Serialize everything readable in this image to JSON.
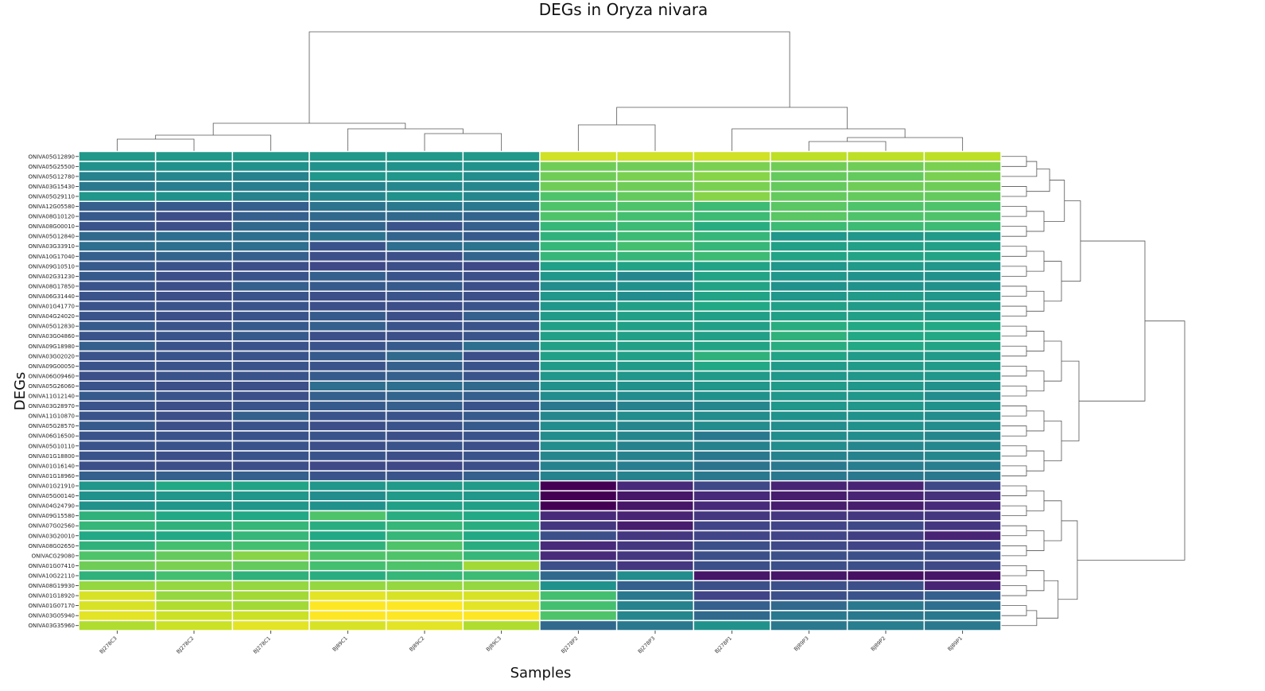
{
  "chart_data": {
    "type": "heatmap",
    "title": "DEGs in Oryza nivara",
    "xlabel": "Samples",
    "ylabel": "DEGs",
    "colormap": "viridis",
    "grid_color": "#ffffff",
    "columns": [
      "BJ278C3",
      "BJ278C2",
      "BJ278C1",
      "BJ89C1",
      "BJ89C2",
      "BJ89C3",
      "BJ278P2",
      "BJ278P3",
      "BJ278P1",
      "BJ89P3",
      "BJ89P2",
      "BJ89P1"
    ],
    "rows": [
      "ONIVA05G12890",
      "ONIVA05G25500",
      "ONIVA05G12780",
      "ONIVA03G15430",
      "ONIVA05G29110",
      "ONIVA12G05580",
      "ONIVA08G10120",
      "ONIVA08G00010",
      "ONIVA05G12840",
      "ONIVA03G33910",
      "ONIVA10G17040",
      "ONIVA09G10510",
      "ONIVA02G31230",
      "ONIVA08G17850",
      "ONIVA06G31440",
      "ONIVA01G41770",
      "ONIVA04G24020",
      "ONIVA05G12830",
      "ONIVA03G04860",
      "ONIVA09G18980",
      "ONIVA03G02020",
      "ONIVA09G00050",
      "ONIVA06G09460",
      "ONIVA05G26060",
      "ONIVA11G12140",
      "ONIVA03G28970",
      "ONIVA11G10870",
      "ONIVA05G28570",
      "ONIVA06G16500",
      "ONIVA05G10110",
      "ONIVA01G18800",
      "ONIVA01G16140",
      "ONIVA01G18960",
      "ONIVA01G21910",
      "ONIVA05G00140",
      "ONIVA04G24790",
      "ONIVA09G15580",
      "ONIVA07G02560",
      "ONIVA03G20010",
      "ONIVA08G02650",
      "ONIVACG29080",
      "ONIVA01G07410",
      "ONIVA10G22110",
      "ONIVA08G19930",
      "ONIVA01G18920",
      "ONIVA01G07170",
      "ONIVA03G05940",
      "ONIVA03G35960"
    ],
    "values": [
      [
        0.53,
        0.53,
        0.53,
        0.53,
        0.53,
        0.53,
        0.93,
        0.93,
        0.93,
        0.9,
        0.9,
        0.9
      ],
      [
        0.5,
        0.5,
        0.5,
        0.5,
        0.5,
        0.5,
        0.78,
        0.78,
        0.8,
        0.78,
        0.78,
        0.8
      ],
      [
        0.44,
        0.46,
        0.44,
        0.52,
        0.52,
        0.48,
        0.78,
        0.8,
        0.82,
        0.76,
        0.76,
        0.8
      ],
      [
        0.4,
        0.42,
        0.42,
        0.44,
        0.46,
        0.46,
        0.78,
        0.78,
        0.8,
        0.76,
        0.78,
        0.78
      ],
      [
        0.52,
        0.5,
        0.44,
        0.46,
        0.5,
        0.46,
        0.72,
        0.76,
        0.82,
        0.76,
        0.76,
        0.76
      ],
      [
        0.3,
        0.28,
        0.3,
        0.38,
        0.4,
        0.4,
        0.72,
        0.72,
        0.68,
        0.74,
        0.72,
        0.72
      ],
      [
        0.28,
        0.24,
        0.3,
        0.34,
        0.34,
        0.32,
        0.72,
        0.7,
        0.68,
        0.74,
        0.72,
        0.72
      ],
      [
        0.26,
        0.24,
        0.34,
        0.32,
        0.26,
        0.3,
        0.66,
        0.68,
        0.62,
        0.68,
        0.68,
        0.68
      ],
      [
        0.34,
        0.36,
        0.36,
        0.38,
        0.32,
        0.28,
        0.64,
        0.68,
        0.66,
        0.52,
        0.52,
        0.54
      ],
      [
        0.36,
        0.36,
        0.36,
        0.26,
        0.36,
        0.38,
        0.66,
        0.7,
        0.66,
        0.56,
        0.56,
        0.56
      ],
      [
        0.3,
        0.32,
        0.3,
        0.24,
        0.24,
        0.32,
        0.66,
        0.66,
        0.68,
        0.58,
        0.58,
        0.58
      ],
      [
        0.28,
        0.26,
        0.24,
        0.22,
        0.24,
        0.22,
        0.56,
        0.58,
        0.58,
        0.52,
        0.54,
        0.52
      ],
      [
        0.28,
        0.24,
        0.26,
        0.3,
        0.26,
        0.24,
        0.52,
        0.46,
        0.58,
        0.52,
        0.5,
        0.5
      ],
      [
        0.26,
        0.24,
        0.3,
        0.28,
        0.28,
        0.24,
        0.48,
        0.5,
        0.58,
        0.5,
        0.5,
        0.5
      ],
      [
        0.26,
        0.24,
        0.26,
        0.24,
        0.26,
        0.24,
        0.52,
        0.48,
        0.58,
        0.52,
        0.54,
        0.52
      ],
      [
        0.26,
        0.26,
        0.26,
        0.24,
        0.24,
        0.26,
        0.52,
        0.56,
        0.6,
        0.56,
        0.54,
        0.54
      ],
      [
        0.26,
        0.24,
        0.26,
        0.28,
        0.24,
        0.3,
        0.54,
        0.56,
        0.56,
        0.56,
        0.56,
        0.54
      ],
      [
        0.28,
        0.26,
        0.28,
        0.3,
        0.26,
        0.26,
        0.56,
        0.56,
        0.56,
        0.62,
        0.6,
        0.6
      ],
      [
        0.26,
        0.26,
        0.28,
        0.24,
        0.24,
        0.26,
        0.56,
        0.56,
        0.56,
        0.64,
        0.6,
        0.6
      ],
      [
        0.3,
        0.26,
        0.26,
        0.26,
        0.28,
        0.36,
        0.56,
        0.56,
        0.58,
        0.62,
        0.6,
        0.58
      ],
      [
        0.26,
        0.26,
        0.26,
        0.28,
        0.34,
        0.24,
        0.56,
        0.56,
        0.64,
        0.58,
        0.54,
        0.54
      ],
      [
        0.26,
        0.26,
        0.26,
        0.26,
        0.3,
        0.26,
        0.54,
        0.54,
        0.6,
        0.54,
        0.54,
        0.54
      ],
      [
        0.24,
        0.26,
        0.26,
        0.28,
        0.3,
        0.26,
        0.52,
        0.52,
        0.54,
        0.52,
        0.52,
        0.52
      ],
      [
        0.26,
        0.24,
        0.24,
        0.36,
        0.36,
        0.34,
        0.5,
        0.5,
        0.52,
        0.54,
        0.52,
        0.5
      ],
      [
        0.28,
        0.26,
        0.24,
        0.3,
        0.32,
        0.3,
        0.48,
        0.48,
        0.5,
        0.52,
        0.52,
        0.48
      ],
      [
        0.26,
        0.24,
        0.26,
        0.28,
        0.3,
        0.26,
        0.4,
        0.44,
        0.46,
        0.52,
        0.52,
        0.5
      ],
      [
        0.26,
        0.24,
        0.3,
        0.26,
        0.26,
        0.28,
        0.46,
        0.48,
        0.48,
        0.5,
        0.5,
        0.48
      ],
      [
        0.28,
        0.24,
        0.26,
        0.24,
        0.26,
        0.28,
        0.48,
        0.46,
        0.48,
        0.48,
        0.5,
        0.48
      ],
      [
        0.26,
        0.26,
        0.26,
        0.26,
        0.24,
        0.26,
        0.48,
        0.46,
        0.4,
        0.48,
        0.48,
        0.46
      ],
      [
        0.26,
        0.26,
        0.26,
        0.24,
        0.26,
        0.24,
        0.48,
        0.44,
        0.44,
        0.48,
        0.46,
        0.46
      ],
      [
        0.26,
        0.24,
        0.26,
        0.26,
        0.24,
        0.26,
        0.46,
        0.44,
        0.4,
        0.44,
        0.44,
        0.46
      ],
      [
        0.24,
        0.24,
        0.24,
        0.22,
        0.22,
        0.24,
        0.44,
        0.42,
        0.38,
        0.4,
        0.42,
        0.42
      ],
      [
        0.3,
        0.3,
        0.3,
        0.26,
        0.26,
        0.3,
        0.44,
        0.44,
        0.4,
        0.4,
        0.4,
        0.4
      ],
      [
        0.52,
        0.6,
        0.58,
        0.52,
        0.54,
        0.54,
        0.0,
        0.12,
        0.22,
        0.1,
        0.1,
        0.22
      ],
      [
        0.5,
        0.52,
        0.52,
        0.48,
        0.54,
        0.52,
        0.0,
        0.06,
        0.12,
        0.08,
        0.1,
        0.14
      ],
      [
        0.5,
        0.52,
        0.52,
        0.5,
        0.56,
        0.56,
        0.0,
        0.06,
        0.12,
        0.08,
        0.08,
        0.12
      ],
      [
        0.64,
        0.6,
        0.6,
        0.72,
        0.62,
        0.6,
        0.12,
        0.1,
        0.16,
        0.16,
        0.16,
        0.16
      ],
      [
        0.66,
        0.64,
        0.66,
        0.62,
        0.66,
        0.62,
        0.16,
        0.08,
        0.2,
        0.2,
        0.22,
        0.16
      ],
      [
        0.6,
        0.6,
        0.66,
        0.6,
        0.66,
        0.6,
        0.24,
        0.16,
        0.2,
        0.2,
        0.18,
        0.1
      ],
      [
        0.64,
        0.7,
        0.7,
        0.64,
        0.72,
        0.62,
        0.12,
        0.16,
        0.24,
        0.22,
        0.2,
        0.22
      ],
      [
        0.72,
        0.76,
        0.82,
        0.72,
        0.72,
        0.66,
        0.12,
        0.16,
        0.24,
        0.24,
        0.24,
        0.24
      ],
      [
        0.78,
        0.8,
        0.76,
        0.7,
        0.72,
        0.86,
        0.24,
        0.16,
        0.24,
        0.24,
        0.24,
        0.22
      ],
      [
        0.64,
        0.7,
        0.64,
        0.62,
        0.66,
        0.68,
        0.34,
        0.48,
        0.06,
        0.06,
        0.04,
        0.06
      ],
      [
        0.84,
        0.84,
        0.84,
        0.84,
        0.84,
        0.84,
        0.5,
        0.3,
        0.24,
        0.24,
        0.24,
        0.1
      ],
      [
        0.94,
        0.84,
        0.86,
        0.96,
        0.94,
        0.94,
        0.7,
        0.4,
        0.2,
        0.24,
        0.26,
        0.3
      ],
      [
        0.94,
        0.88,
        0.86,
        1.0,
        1.0,
        0.96,
        0.7,
        0.44,
        0.3,
        0.34,
        0.4,
        0.36
      ],
      [
        0.96,
        0.92,
        0.92,
        1.0,
        1.0,
        1.0,
        0.72,
        0.46,
        0.34,
        0.4,
        0.4,
        0.4
      ],
      [
        0.88,
        0.92,
        0.96,
        0.94,
        0.96,
        0.88,
        0.34,
        0.4,
        0.5,
        0.4,
        0.42,
        0.4
      ]
    ]
  }
}
